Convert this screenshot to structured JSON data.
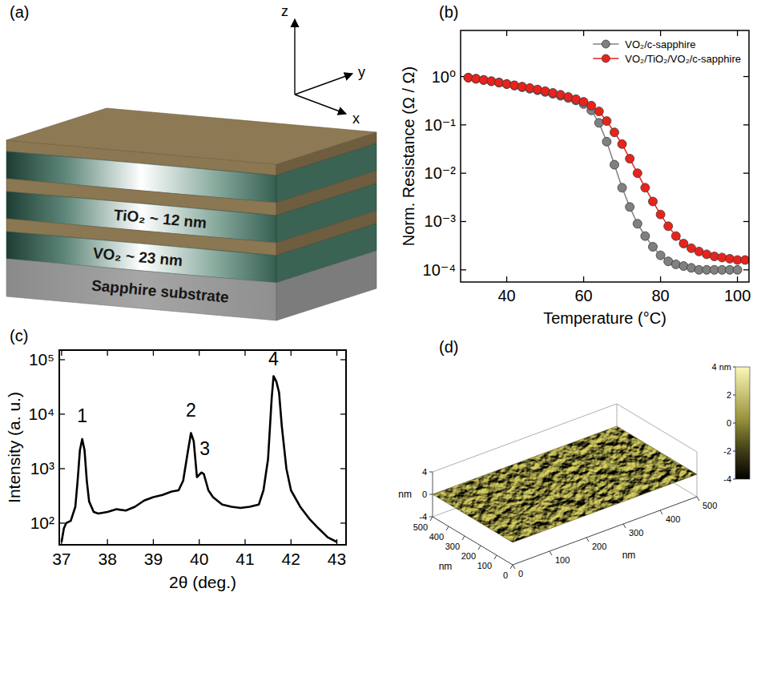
{
  "diagram": {
    "panel_label": "(a)",
    "axis_labels": {
      "x": "x",
      "y": "y",
      "z": "z"
    },
    "layer_labels": [
      "TiO₂ ~ 12 nm",
      "VO₂ ~ 23 nm"
    ],
    "substrate_label": "Sapphire substrate"
  },
  "chart_data": [
    {
      "type": "line",
      "panel_label": "(b)",
      "x_label": "Temperature (°C)",
      "y_label": "Norm. Resistance (Ω / Ω)",
      "log": "y",
      "grid": false,
      "legend": "upper right",
      "xlim": [
        28,
        103
      ],
      "xticks": [
        40,
        60,
        80,
        100
      ],
      "ylim": [
        5.6e-05,
        9
      ],
      "yticks": [
        {
          "value": 1,
          "label": "10⁰"
        },
        {
          "value": 0.1,
          "label": "10⁻¹"
        },
        {
          "value": 0.01,
          "label": "10⁻²"
        },
        {
          "value": 0.001,
          "label": "10⁻³"
        },
        {
          "value": 0.0001,
          "label": "10⁻⁴"
        }
      ],
      "series": [
        {
          "name": "VO₂/c-sapphire",
          "color": "#808080",
          "marker": "circle",
          "line_style": "solid",
          "x": [
            30,
            32,
            34,
            36,
            38,
            40,
            42,
            44,
            46,
            48,
            50,
            52,
            54,
            56,
            58,
            60,
            62,
            64,
            66,
            68,
            70,
            72,
            74,
            76,
            78,
            80,
            82,
            84,
            86,
            88,
            90,
            92,
            94,
            96,
            98,
            100
          ],
          "values": [
            0.95,
            0.9,
            0.85,
            0.8,
            0.75,
            0.7,
            0.65,
            0.6,
            0.56,
            0.52,
            0.48,
            0.44,
            0.4,
            0.36,
            0.32,
            0.27,
            0.2,
            0.11,
            0.045,
            0.015,
            0.005,
            0.002,
            0.0009,
            0.0005,
            0.0003,
            0.0002,
            0.00015,
            0.00013,
            0.00012,
            0.00011,
            0.0001,
            0.0001,
            0.0001,
            0.0001,
            0.0001,
            0.0001
          ]
        },
        {
          "name": "VO₂/TiO₂/VO₂/c-sapphire",
          "color": "#e8231c",
          "marker": "circle",
          "line_style": "solid",
          "x": [
            30,
            32,
            34,
            36,
            38,
            40,
            42,
            44,
            46,
            48,
            50,
            52,
            54,
            56,
            58,
            60,
            62,
            64,
            66,
            68,
            70,
            72,
            74,
            76,
            78,
            80,
            82,
            84,
            86,
            88,
            90,
            92,
            94,
            96,
            98,
            100,
            102
          ],
          "values": [
            0.95,
            0.9,
            0.85,
            0.8,
            0.75,
            0.7,
            0.66,
            0.62,
            0.58,
            0.54,
            0.5,
            0.46,
            0.42,
            0.38,
            0.34,
            0.3,
            0.25,
            0.19,
            0.12,
            0.07,
            0.04,
            0.02,
            0.01,
            0.005,
            0.0026,
            0.0014,
            0.0008,
            0.0005,
            0.00035,
            0.00028,
            0.00024,
            0.00021,
            0.00019,
            0.00018,
            0.00017,
            0.00016,
            0.00016
          ]
        }
      ]
    },
    {
      "type": "line",
      "panel_label": "(c)",
      "x_label": "2θ (deg.)",
      "y_label": "Intensity (a. u.)",
      "log": "y",
      "grid": false,
      "xlim": [
        36.95,
        43.2
      ],
      "xticks": [
        37,
        38,
        39,
        40,
        41,
        42,
        43
      ],
      "ylim": [
        40,
        150000
      ],
      "yticks": [
        {
          "value": 100,
          "label": "10²"
        },
        {
          "value": 1000,
          "label": "10³"
        },
        {
          "value": 10000,
          "label": "10⁴"
        },
        {
          "value": 100000,
          "label": "10⁵"
        }
      ],
      "series": [
        {
          "color": "#000000",
          "line_style": "solid",
          "x": [
            37.0,
            37.05,
            37.1,
            37.2,
            37.3,
            37.35,
            37.4,
            37.45,
            37.5,
            37.55,
            37.6,
            37.7,
            37.8,
            38.0,
            38.2,
            38.4,
            38.6,
            38.8,
            39.0,
            39.2,
            39.4,
            39.55,
            39.65,
            39.75,
            39.82,
            39.88,
            39.95,
            40.05,
            40.1,
            40.2,
            40.3,
            40.5,
            40.7,
            40.9,
            41.1,
            41.3,
            41.4,
            41.5,
            41.58,
            41.62,
            41.68,
            41.74,
            41.8,
            41.9,
            42.0,
            42.2,
            42.4,
            42.6,
            42.8,
            43.0
          ],
          "values": [
            45,
            80,
            100,
            110,
            200,
            600,
            2200,
            3500,
            2200,
            600,
            250,
            160,
            150,
            160,
            180,
            170,
            200,
            260,
            300,
            330,
            380,
            400,
            600,
            2000,
            4500,
            3200,
            700,
            850,
            800,
            400,
            300,
            220,
            200,
            190,
            200,
            220,
            400,
            1500,
            20000,
            50000,
            40000,
            25000,
            6000,
            1000,
            400,
            200,
            120,
            80,
            55,
            45
          ]
        }
      ],
      "annotations": [
        {
          "text": "1",
          "x": 37.45,
          "y": 7000
        },
        {
          "text": "2",
          "x": 39.82,
          "y": 9000
        },
        {
          "text": "3",
          "x": 40.12,
          "y": 1800
        },
        {
          "text": "4",
          "x": 41.62,
          "y": 80000
        }
      ]
    }
  ],
  "afm": {
    "panel_label": "(d)",
    "x_label": "nm",
    "y_label": "nm",
    "z_label": "nm",
    "xlim": [
      0,
      500
    ],
    "ylim": [
      0,
      500
    ],
    "zlim": [
      -4,
      4
    ],
    "xticks": [
      0,
      100,
      200,
      300,
      400,
      500
    ],
    "yticks": [
      0,
      100,
      200,
      300,
      400,
      500
    ],
    "zticks": [
      -4,
      0,
      4
    ],
    "colorbar": {
      "range": [
        -4,
        4
      ],
      "ticks": [
        {
          "value": 4,
          "label": "4 nm"
        },
        2,
        0,
        -2,
        -4
      ]
    }
  }
}
